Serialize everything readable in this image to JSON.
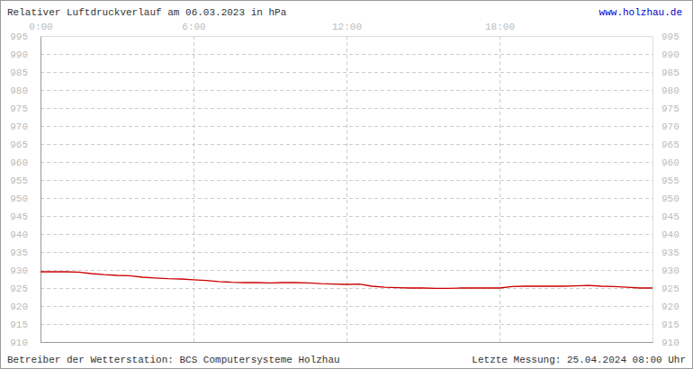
{
  "chart_data": {
    "type": "line",
    "title": "Relativer Luftdruckverlauf am 06.03.2023 in hPa",
    "annotations": [
      "www.holzhau.de",
      "Betreiber der Wetterstation: BCS Computersysteme Holzhau",
      "Letzte Messung: 25.04.2024 08:00 Uhr"
    ],
    "x": [
      0,
      0.5,
      1,
      1.5,
      2,
      2.5,
      3,
      3.5,
      4,
      4.5,
      5,
      5.5,
      6,
      6.5,
      7,
      7.5,
      8,
      8.5,
      9,
      9.5,
      10,
      10.5,
      11,
      11.5,
      12,
      12.5,
      13,
      13.5,
      14,
      14.5,
      15,
      15.5,
      16,
      16.5,
      17,
      17.5,
      18,
      18.5,
      19,
      19.5,
      20,
      20.5,
      21,
      21.5,
      22,
      22.5,
      23,
      23.5,
      24
    ],
    "values": [
      929.5,
      929.5,
      929.5,
      929.4,
      929.0,
      928.7,
      928.5,
      928.4,
      928.0,
      927.8,
      927.6,
      927.5,
      927.3,
      927.1,
      926.8,
      926.6,
      926.5,
      926.5,
      926.4,
      926.5,
      926.5,
      926.4,
      926.2,
      926.1,
      926.0,
      926.1,
      925.5,
      925.2,
      925.1,
      925.0,
      925.0,
      924.9,
      924.9,
      925.0,
      925.0,
      925.0,
      925.0,
      925.4,
      925.5,
      925.5,
      925.5,
      925.5,
      925.6,
      925.7,
      925.5,
      925.4,
      925.2,
      925.0,
      925.0
    ],
    "color": "#cc0000",
    "xlim": [
      0,
      24
    ],
    "xticks": [
      {
        "value": 0,
        "label": "0:00"
      },
      {
        "value": 6,
        "label": "6:00"
      },
      {
        "value": 12,
        "label": "12:00"
      },
      {
        "value": 18,
        "label": "18:00"
      }
    ],
    "ylim": [
      910,
      995
    ],
    "yticks": [
      910,
      915,
      920,
      925,
      930,
      935,
      940,
      945,
      950,
      955,
      960,
      965,
      970,
      975,
      980,
      985,
      990,
      995
    ],
    "grid": true
  }
}
